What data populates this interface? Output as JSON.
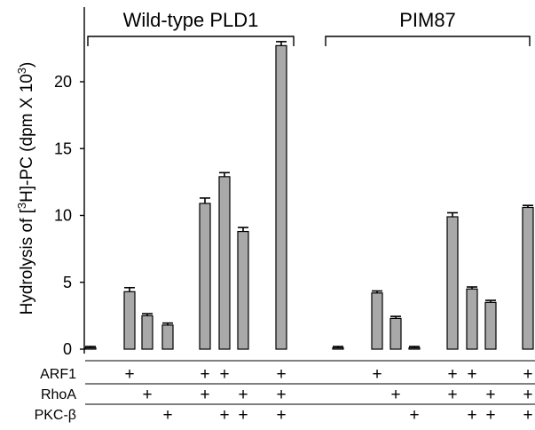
{
  "chart_data": {
    "type": "bar",
    "ylabel": "Hydrolysis of [³H]-PC (dpm X 10³)",
    "ylabel_parts": {
      "pre": "Hydrolysis of [",
      "sup1": "3",
      "mid": "H]-PC (dpm X 10",
      "sup2": "3",
      "post": ")"
    },
    "ylim": [
      0,
      25
    ],
    "yticks": [
      0,
      5,
      10,
      15,
      20
    ],
    "grid": false,
    "groups": [
      {
        "label": "Wild-type PLD1",
        "range": [
          0,
          7
        ]
      },
      {
        "label": "PIM87",
        "range": [
          8,
          15
        ]
      }
    ],
    "conditions": [
      {
        "ARF1": false,
        "RhoA": false,
        "PKC": false
      },
      {
        "ARF1": true,
        "RhoA": false,
        "PKC": false
      },
      {
        "ARF1": false,
        "RhoA": true,
        "PKC": false
      },
      {
        "ARF1": false,
        "RhoA": false,
        "PKC": true
      },
      {
        "ARF1": true,
        "RhoA": true,
        "PKC": false
      },
      {
        "ARF1": true,
        "RhoA": false,
        "PKC": true
      },
      {
        "ARF1": false,
        "RhoA": true,
        "PKC": true
      },
      {
        "ARF1": true,
        "RhoA": true,
        "PKC": true
      }
    ],
    "series": [
      {
        "values": [
          0.1,
          4.3,
          2.5,
          1.8,
          10.9,
          12.9,
          8.8,
          22.7
        ],
        "errors": [
          0.1,
          0.3,
          0.15,
          0.15,
          0.4,
          0.3,
          0.3,
          0.3
        ]
      },
      {
        "values": [
          0.1,
          4.2,
          2.3,
          0.1,
          9.9,
          4.5,
          3.5,
          10.6
        ],
        "errors": [
          0.1,
          0.15,
          0.15,
          0.1,
          0.3,
          0.15,
          0.15,
          0.15
        ]
      }
    ],
    "row_labels": {
      "ARF1": "ARF1",
      "RhoA": "RhoA",
      "PKC": "PKC-β"
    },
    "plus_symbol": "+"
  }
}
